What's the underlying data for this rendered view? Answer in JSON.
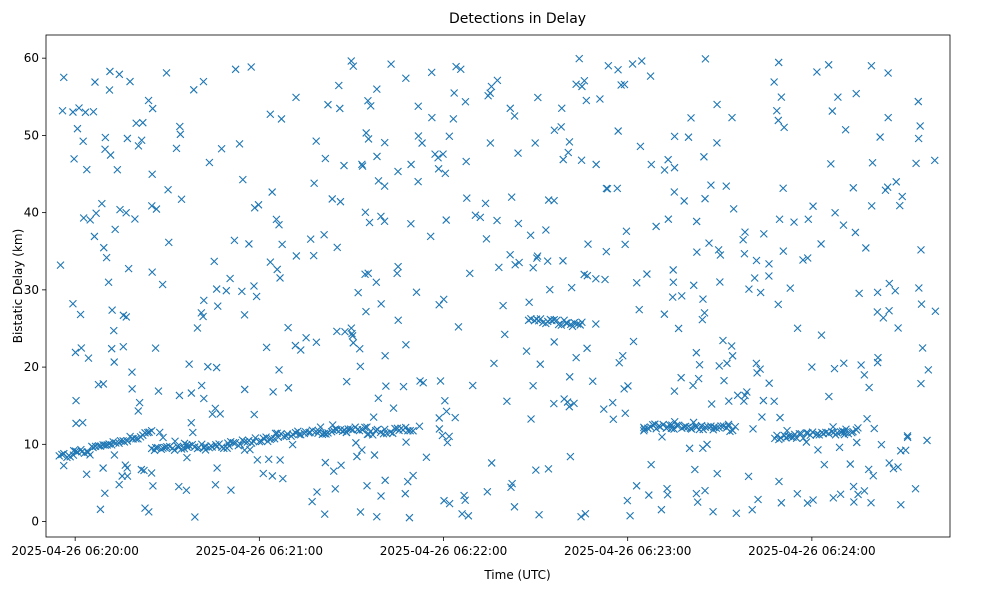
{
  "chart_data": {
    "type": "scatter",
    "title": "Detections in Delay",
    "xlabel": "Time (UTC)",
    "ylabel": "Bistatic Delay (km)",
    "x_unit": "seconds past 2025-04-26 06:20:00 UTC",
    "xlim": [
      -9.5,
      285
    ],
    "ylim": [
      -2.0,
      63.0
    ],
    "x_ticks": [
      {
        "value": 0,
        "label": "2025-04-26 06:20:00"
      },
      {
        "value": 60,
        "label": "2025-04-26 06:21:00"
      },
      {
        "value": 120,
        "label": "2025-04-26 06:22:00"
      },
      {
        "value": 180,
        "label": "2025-04-26 06:23:00"
      },
      {
        "value": 240,
        "label": "2025-04-26 06:24:00"
      }
    ],
    "y_ticks": [
      0,
      10,
      20,
      30,
      40,
      50,
      60
    ],
    "marker": "x",
    "color": "#1f77b4",
    "grid": false,
    "structured_tracks": [
      {
        "x_start": -5,
        "x_end": 25,
        "y_start": 8.3,
        "y_end": 11.5
      },
      {
        "x_start": 25,
        "x_end": 50,
        "y_start": 9.5,
        "y_end": 9.8
      },
      {
        "x_start": 50,
        "x_end": 65,
        "y_start": 10.0,
        "y_end": 10.8
      },
      {
        "x_start": 65,
        "x_end": 95,
        "y_start": 11.2,
        "y_end": 12.0
      },
      {
        "x_start": 95,
        "x_end": 110,
        "y_start": 11.5,
        "y_end": 12.0
      },
      {
        "x_start": 148,
        "x_end": 165,
        "y_start": 26.2,
        "y_end": 25.5
      },
      {
        "x_start": 185,
        "x_end": 215,
        "y_start": 12.3,
        "y_end": 12.0
      },
      {
        "x_start": 228,
        "x_end": 255,
        "y_start": 10.8,
        "y_end": 11.8
      }
    ],
    "points": []
  }
}
